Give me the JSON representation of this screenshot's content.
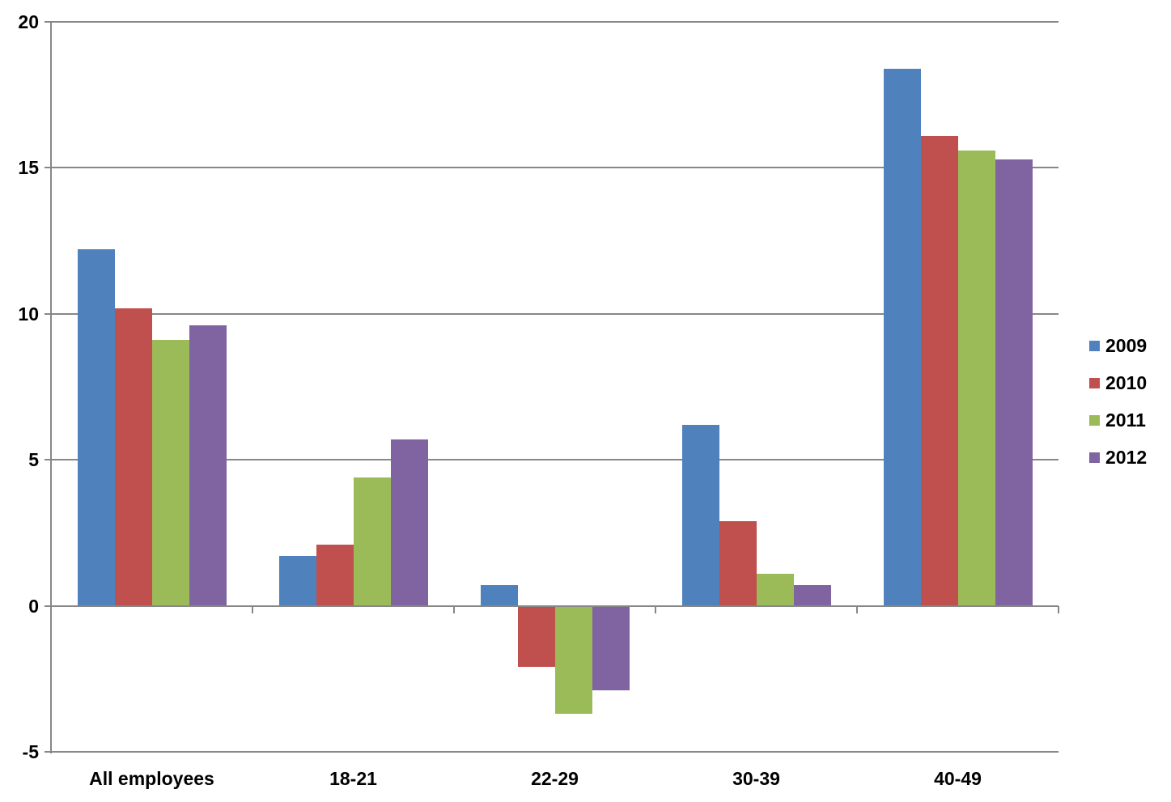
{
  "chart_data": {
    "type": "bar",
    "title": "",
    "xlabel": "",
    "ylabel": "",
    "categories": [
      "All employees",
      "18-21",
      "22-29",
      "30-39",
      "40-49"
    ],
    "series": [
      {
        "name": "2009",
        "color": "#4F81BD",
        "values": [
          12.2,
          1.7,
          0.7,
          6.2,
          18.4
        ]
      },
      {
        "name": "2010",
        "color": "#C0504D",
        "values": [
          10.2,
          2.1,
          -2.1,
          2.9,
          16.1
        ]
      },
      {
        "name": "2011",
        "color": "#9BBB59",
        "values": [
          9.1,
          4.4,
          -3.7,
          1.1,
          15.6
        ]
      },
      {
        "name": "2012",
        "color": "#8064A2",
        "values": [
          9.6,
          5.7,
          -2.9,
          0.7,
          15.3
        ]
      }
    ],
    "ylim": [
      -5,
      20
    ],
    "yticks": [
      20,
      15,
      10,
      5,
      0,
      -5
    ],
    "ytick_labels": [
      "20",
      "15",
      "10",
      "5",
      "0",
      "-5"
    ],
    "grid": true,
    "legend_position": "right",
    "axis_color": "#878787",
    "text_color": "#000000",
    "background": "#FFFFFF"
  }
}
